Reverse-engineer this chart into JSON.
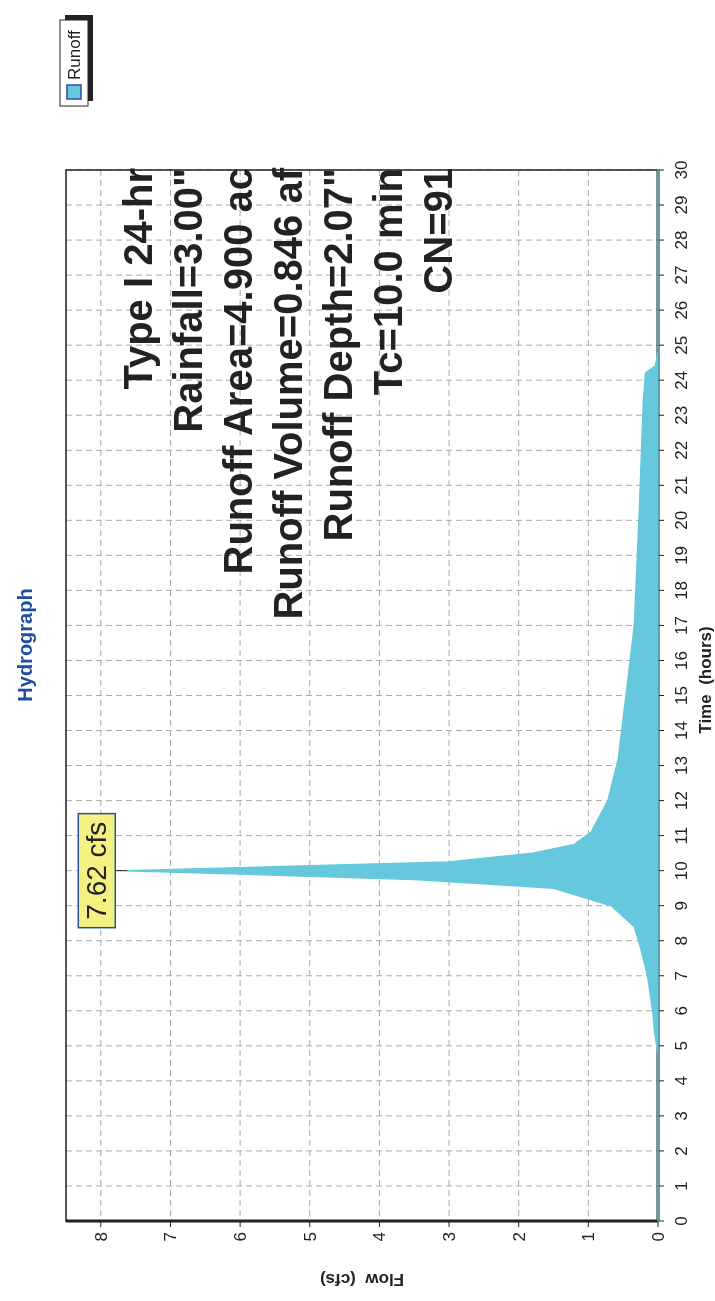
{
  "chart_data": {
    "type": "area",
    "orientation": "horizontal",
    "title": "Hydrograph",
    "xlabel": "Flow  (cfs)",
    "ylabel": "Time  (hours)",
    "x": [
      0,
      4,
      4.76,
      5.4,
      5.9,
      7.0,
      7.8,
      8.4,
      9.0,
      9.5,
      9.75,
      10.0,
      10.25,
      10.5,
      10.75,
      11.1,
      12.0,
      13.2,
      15.0,
      17.0,
      20.2,
      23.4,
      24.2,
      24.4,
      24.8,
      30
    ],
    "series": [
      {
        "name": "Runoff",
        "color": "#66c8dc",
        "values": [
          0,
          0,
          0,
          0.05,
          0.07,
          0.15,
          0.25,
          0.34,
          0.67,
          1.5,
          3.5,
          7.62,
          3.0,
          1.8,
          1.2,
          0.96,
          0.72,
          0.57,
          0.46,
          0.34,
          0.27,
          0.21,
          0.18,
          0.04,
          0,
          0
        ]
      }
    ],
    "xlim": [
      8.5,
      0
    ],
    "xticks": [
      8,
      7,
      6,
      5,
      4,
      3,
      2,
      1,
      0
    ],
    "ylim": [
      0,
      30
    ],
    "yticks": [
      0,
      1,
      2,
      3,
      4,
      5,
      6,
      7,
      8,
      9,
      10,
      11,
      12,
      13,
      14,
      15,
      16,
      17,
      18,
      19,
      20,
      21,
      22,
      23,
      24,
      25,
      26,
      27,
      28,
      29,
      30
    ],
    "grid": true,
    "legend": "top left",
    "annotations": [
      {
        "text": "7.62 cfs",
        "x": 7.62,
        "y": 10.0
      },
      "Type I 24-hr",
      "Rainfall=3.00\"",
      "Runoff Area=4.900 ac",
      "Runoff Volume=0.846 af",
      "Runoff Depth=2.07\"",
      "Tc=10.0 min",
      "CN=91"
    ]
  }
}
